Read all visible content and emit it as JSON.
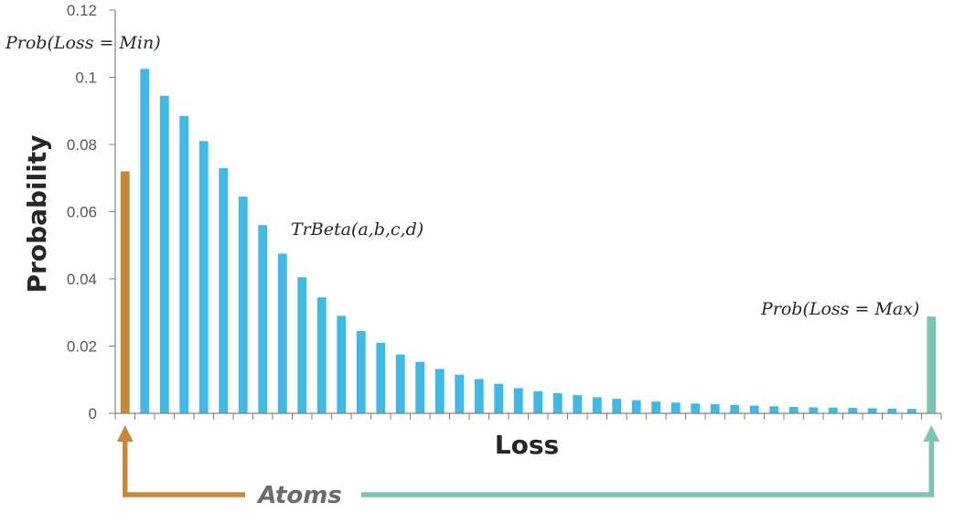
{
  "chart_data": {
    "type": "bar",
    "xlabel": "Loss",
    "ylabel": "Probability",
    "ylim": [
      0,
      0.12
    ],
    "yticks": [
      "0",
      "0.02",
      "0.04",
      "0.06",
      "0.08",
      "0.1",
      "0.12"
    ],
    "grid": false,
    "colors": {
      "min_atom": "#C8883A",
      "body": "#41B8E6",
      "max_atom": "#7EC4B5",
      "axis": "#808080"
    },
    "series": [
      {
        "values": [
          0.072,
          0.1025,
          0.0945,
          0.0885,
          0.081,
          0.073,
          0.0645,
          0.056,
          0.0475,
          0.0405,
          0.0345,
          0.029,
          0.0245,
          0.021,
          0.0175,
          0.0153,
          0.0132,
          0.0115,
          0.0102,
          0.0088,
          0.0075,
          0.0066,
          0.006,
          0.0054,
          0.0048,
          0.0043,
          0.0039,
          0.0035,
          0.0032,
          0.0029,
          0.0027,
          0.0025,
          0.0023,
          0.0021,
          0.0019,
          0.0018,
          0.0017,
          0.0016,
          0.0015,
          0.0014,
          0.0013,
          0.0288
        ]
      }
    ],
    "annotations": {
      "min_label": "Prob(Loss = Min)",
      "body_label": "TrBeta(a,b,c,d)",
      "max_label": "Prob(Loss = Max)",
      "atoms_label": "Atoms"
    }
  }
}
